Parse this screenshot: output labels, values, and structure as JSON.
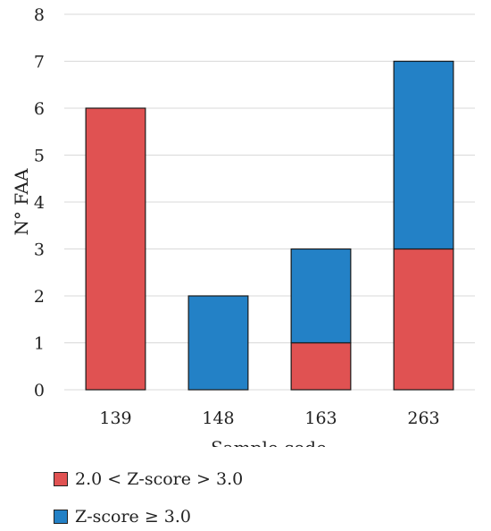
{
  "chart_data": {
    "type": "bar",
    "stacked": true,
    "title": "",
    "xlabel": "Sample code",
    "ylabel": "N° FAA",
    "categories": [
      "139",
      "148",
      "163",
      "263"
    ],
    "ylim": [
      0,
      8
    ],
    "yticks": [
      0,
      1,
      2,
      3,
      4,
      5,
      6,
      7,
      8
    ],
    "grid": true,
    "legend_position": "bottom-left",
    "series": [
      {
        "name": "2.0 < Z-score > 3.0",
        "color": "#e05252",
        "values": [
          6,
          0,
          1,
          3
        ]
      },
      {
        "name": "Z-score ≥ 3.0",
        "color": "#2381c6",
        "values": [
          0,
          2,
          2,
          4
        ]
      }
    ]
  }
}
